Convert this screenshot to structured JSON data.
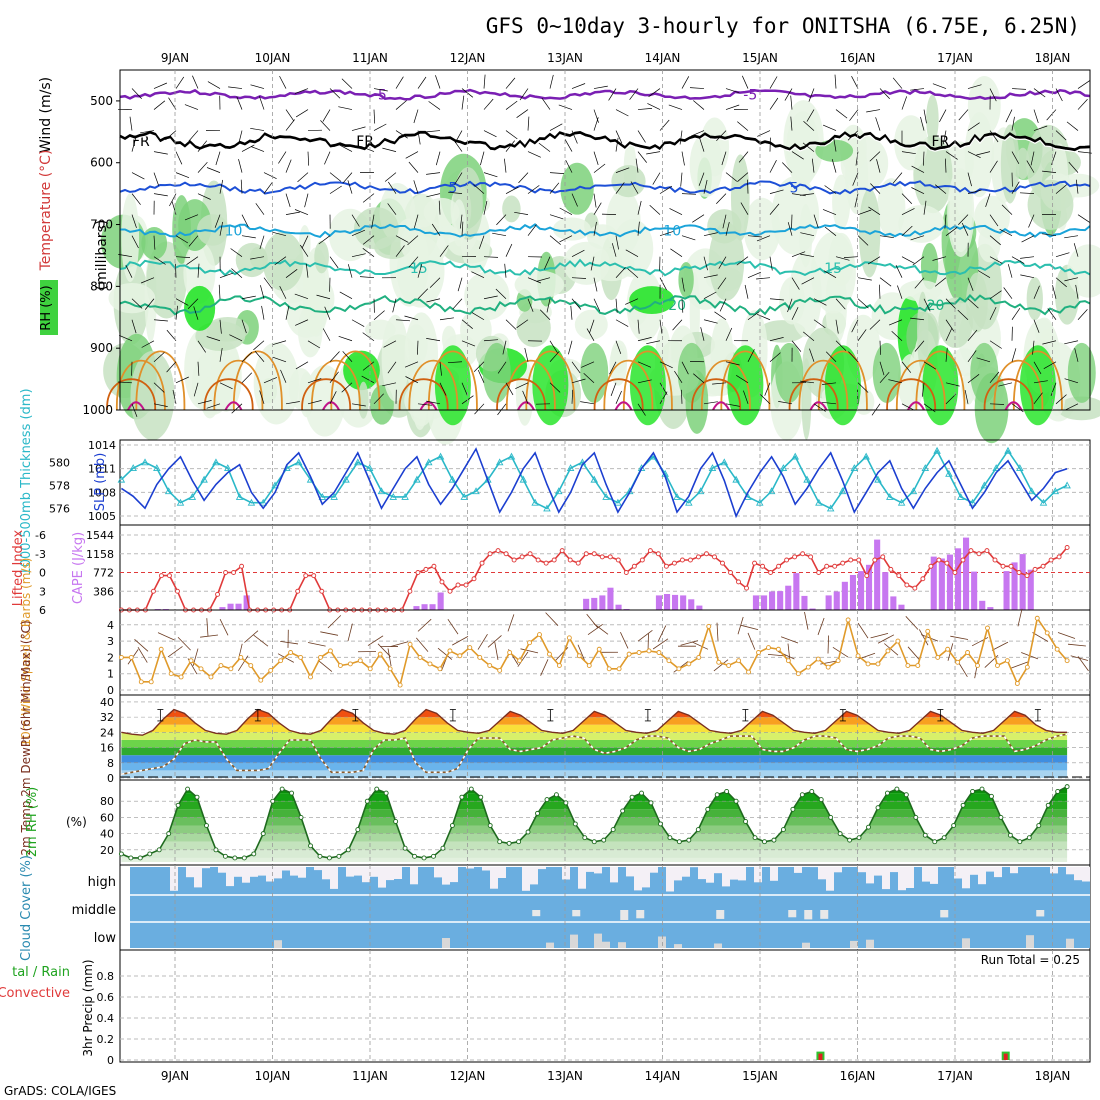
{
  "title": "GFS 0~10day 3-hourly for ONITSHA (6.75E, 6.25N)",
  "credit": "GrADS: COLA/IGES",
  "run_total_label": "Run Total = 0.25",
  "colors": {
    "rh_light": "#e6f3e3",
    "rh_mid": "#c7e2c2",
    "rh_dark": "#7dd17a",
    "rh_bright": "#1be31e",
    "purple": "#7a1fb3",
    "blue": "#1c4fd6",
    "cyan": "#1aa3d9",
    "teal": "#2bbfae",
    "green_iso": "#20b080",
    "orange": "#e0902a",
    "magenta": "#c2148a",
    "slp": "#1c3fd0",
    "thick": "#2ab8c8",
    "cape": "#c777f0",
    "li": "#e03a3a",
    "wind": "#e09a2a",
    "temp_line": "#7a3020",
    "dew_line": "#8a5a2a",
    "rh2": "#1fa31f",
    "cloud": "#6aaee0",
    "cloud_white": "#f4f0f6",
    "precip_green": "#2ec42e",
    "precip_red": "#e02020"
  },
  "chart_data": [
    {
      "type": "contour",
      "name": "upper-air",
      "xlabel_dates": [
        "9JAN",
        "10JAN",
        "11JAN",
        "12JAN",
        "13JAN",
        "14JAN",
        "15JAN",
        "16JAN",
        "17JAN",
        "18JAN"
      ],
      "ylabel": "(millibars)",
      "left_labels": [
        "Wind (m/s)",
        "Temperature (°C)",
        "RH (%)"
      ],
      "y_ticks": [
        500,
        600,
        700,
        800,
        900,
        1000
      ],
      "ylim": [
        450,
        1000
      ],
      "isotherms": [
        {
          "label": "-5",
          "p": 490
        },
        {
          "label": "FR",
          "p": 565
        },
        {
          "label": "5",
          "p": 640
        },
        {
          "label": "10",
          "p": 710
        },
        {
          "label": "15",
          "p": 770
        },
        {
          "label": "20",
          "p": 830
        }
      ]
    },
    {
      "type": "line",
      "name": "slp-thickness",
      "left_label": "1000-500mb Thickness (dm)",
      "right_label": "SLP (mb)",
      "left_ticks": [
        576,
        578,
        580
      ],
      "right_ticks": [
        1005,
        1008,
        1011,
        1014
      ],
      "series": [
        {
          "name": "SLP",
          "values": [
            1008.5,
            1007.5,
            1006,
            1009,
            1011,
            1012.5,
            1009.5,
            1007,
            1009,
            1010.5,
            1011.5,
            1008,
            1006,
            1008,
            1011.5,
            1013,
            1010,
            1006.5,
            1008,
            1010.5,
            1013,
            1009.5,
            1006,
            1008.5,
            1011,
            1012.5,
            1009,
            1006.5,
            1008.5,
            1011,
            1013.5,
            1009.5,
            1005.5,
            1008,
            1011,
            1013,
            1009,
            1005.5,
            1008,
            1011.5,
            1013,
            1009,
            1005.5,
            1008,
            1011,
            1013,
            1010,
            1005.5,
            1007.5,
            1011,
            1013,
            1009.5,
            1005,
            1008,
            1010.5,
            1012.5,
            1010,
            1006.5,
            1008.5,
            1011,
            1013,
            1009.5,
            1005.5,
            1008,
            1010.5,
            1012,
            1008.5,
            1006,
            1008.5,
            1010.5,
            1012,
            1009,
            1006,
            1008,
            1010.5,
            1012,
            1009.5,
            1007,
            1008.5,
            1010.5,
            1011
          ]
        },
        {
          "name": "Thickness",
          "values": [
            578.5,
            579.5,
            580,
            579.5,
            577.5,
            576.5,
            577,
            578.5,
            580,
            579.5,
            577,
            576.5,
            576.5,
            578,
            579.5,
            580,
            578.5,
            577,
            577,
            578.5,
            580,
            579.5,
            577.5,
            577,
            577,
            578.5,
            580,
            580.5,
            578.5,
            577,
            577.5,
            578.5,
            580,
            580.5,
            578.5,
            576.5,
            576,
            577.5,
            579.5,
            580,
            578.5,
            577,
            576.5,
            577.5,
            579.5,
            580.5,
            579,
            577,
            576.5,
            577.5,
            579.5,
            580,
            578.5,
            577,
            576.5,
            577.5,
            579.5,
            580.5,
            578.5,
            576.5,
            576,
            577.5,
            579.5,
            580.5,
            578.5,
            577,
            576.5,
            577.5,
            579.5,
            581,
            579,
            577,
            576.5,
            578,
            579.5,
            581,
            579.5,
            577.5,
            576.5,
            577.5,
            578
          ]
        }
      ]
    },
    {
      "type": "bar+line",
      "name": "cape-li",
      "left_label": "Lifted Index",
      "right_label": "CAPE (J/kg)",
      "li_ticks": [
        -6,
        -3,
        0,
        3,
        6
      ],
      "cape_ticks": [
        386,
        772,
        1158,
        1544
      ],
      "cape": [
        0,
        0,
        0,
        0,
        20,
        20,
        0,
        0,
        0,
        0,
        0,
        0,
        60,
        130,
        130,
        300,
        0,
        0,
        0,
        0,
        0,
        0,
        0,
        0,
        0,
        0,
        0,
        0,
        0,
        0,
        0,
        0,
        0,
        0,
        0,
        0,
        80,
        120,
        120,
        360,
        0,
        0,
        0,
        0,
        0,
        0,
        0,
        0,
        0,
        0,
        0,
        0,
        0,
        0,
        0,
        0,
        0,
        230,
        250,
        300,
        460,
        110,
        20,
        0,
        0,
        0,
        300,
        330,
        310,
        300,
        220,
        90,
        0,
        0,
        0,
        0,
        0,
        0,
        300,
        300,
        380,
        390,
        500,
        760,
        290,
        30,
        0,
        300,
        380,
        580,
        720,
        800,
        930,
        1450,
        780,
        280,
        110,
        0,
        0,
        0,
        1100,
        1060,
        1140,
        1270,
        1490,
        790,
        190,
        60,
        0,
        800,
        980,
        1150,
        830,
        0,
        0,
        0,
        0
      ],
      "li": [
        6,
        6,
        6,
        6,
        3,
        0.5,
        0.5,
        3,
        6,
        6,
        6,
        6,
        3.5,
        0,
        0,
        -1,
        6,
        6,
        6,
        6,
        6,
        6,
        3,
        0.5,
        0.5,
        3,
        6,
        6,
        6,
        6,
        6,
        6,
        6,
        6,
        6,
        6,
        3,
        0,
        -0.5,
        -1,
        1.5,
        3,
        2,
        2,
        1,
        -1.5,
        -3,
        -3.5,
        -3,
        -2,
        -2.5,
        -3,
        -2,
        -1.5,
        -2,
        -3.5,
        -2,
        -1.5,
        -3,
        -3,
        -2.5,
        -2.5,
        -2,
        0,
        -1,
        -2,
        -3.5,
        -3,
        -1,
        -1.5,
        -2,
        -2,
        -2.5,
        -3,
        -2.5,
        -1.5,
        0,
        1.5,
        2.5,
        -1.5,
        -1,
        0,
        -1,
        -2,
        -2.5,
        -3,
        -2.5,
        0,
        -1,
        -1,
        -1.5,
        -2,
        -2,
        0.5,
        -2,
        -2.5,
        -0.5,
        0.5,
        2,
        2.5,
        1,
        -1,
        -2,
        -1.5,
        0,
        -2,
        -3.5,
        -3,
        -3.5,
        -2,
        -1,
        -1,
        0,
        0.5,
        -0.5,
        -1,
        -2,
        -2.5,
        -4
      ]
    },
    {
      "type": "line",
      "name": "wind10m",
      "left_label": "10m Wind Speed & Barbs (m/s)",
      "y_ticks": [
        0,
        1,
        2,
        3,
        4
      ],
      "values": [
        2,
        2,
        0.5,
        0.5,
        2.5,
        1,
        0.8,
        1.8,
        1.3,
        0.8,
        1.5,
        1.3,
        2,
        1.5,
        0.6,
        1.2,
        1.8,
        2.3,
        2,
        0.8,
        2,
        2.4,
        1.5,
        1.6,
        1.8,
        1.3,
        2.2,
        1.3,
        0.3,
        2.8,
        2,
        1.6,
        1.3,
        2.4,
        2.1,
        2.6,
        2,
        1.5,
        1.2,
        2.3,
        1.8,
        2.9,
        3.4,
        2.2,
        1.5,
        3.2,
        2.1,
        1.5,
        2.5,
        1.3,
        1.3,
        2.2,
        2.3,
        2.4,
        2.3,
        1.8,
        1.3,
        1.6,
        2,
        3.9,
        1.7,
        1.5,
        1.8,
        1.1,
        2.3,
        2.6,
        2.5,
        1.8,
        1,
        1.4,
        1.9,
        1.4,
        1.8,
        4.3,
        2.1,
        1.6,
        1.6,
        2.4,
        3,
        1.5,
        1.5,
        3.6,
        2,
        2.5,
        1.7,
        2.3,
        1.5,
        3.8,
        1.5,
        1.8,
        0.4,
        1.4,
        4.4,
        3.5,
        2.5,
        1.8
      ]
    },
    {
      "type": "area",
      "name": "temp2m",
      "left_label": "2m Temp 2m DewPt (6hr Min/Max) (°C)",
      "y_ticks": [
        0,
        8,
        16,
        24,
        32,
        40
      ],
      "temp": [
        24,
        23,
        22.5,
        25,
        31,
        36,
        34,
        29,
        25,
        23.5,
        23,
        25,
        31,
        36,
        34,
        29,
        25,
        23.5,
        23,
        25,
        31,
        36,
        34,
        29,
        25,
        23.5,
        23,
        25,
        31,
        36,
        34,
        29,
        25,
        24,
        23.5,
        25,
        30,
        35,
        33,
        29,
        25,
        24,
        23.5,
        25,
        30,
        35,
        33,
        29,
        25,
        24,
        23.5,
        25,
        30,
        35,
        33,
        29,
        25,
        24,
        23.5,
        25,
        30,
        35,
        33,
        29,
        25,
        24,
        23.5,
        25,
        30,
        35,
        33,
        29,
        25,
        24,
        23.5,
        25,
        30,
        35,
        33,
        29,
        25,
        24,
        23.5,
        25,
        30,
        35,
        33,
        28,
        25,
        24,
        24
      ],
      "dew": [
        2,
        3,
        4,
        5,
        6,
        10,
        18,
        20,
        19,
        19,
        10,
        4,
        4,
        4,
        5,
        13,
        20,
        20,
        20,
        10,
        3,
        3,
        3,
        4,
        15,
        20,
        20,
        21,
        8,
        3,
        3,
        3,
        5,
        15,
        21,
        21,
        21,
        15,
        14,
        15,
        16,
        20,
        21,
        22,
        21,
        15,
        13,
        14,
        16,
        20,
        22,
        22,
        21,
        16,
        14,
        15,
        18,
        20,
        22,
        22,
        22,
        15,
        14,
        14,
        16,
        20,
        22,
        22,
        21,
        15,
        14,
        15,
        17,
        21,
        22,
        22,
        21,
        15,
        14,
        15,
        17,
        21,
        22,
        22,
        22,
        14,
        15,
        17,
        20,
        22,
        23
      ]
    },
    {
      "type": "area",
      "name": "rh2m",
      "left_label": "2m RH (%)",
      "y_ticks": [
        20,
        40,
        60,
        80
      ],
      "values": [
        15,
        10,
        10,
        15,
        20,
        40,
        75,
        95,
        85,
        50,
        20,
        12,
        10,
        10,
        15,
        40,
        80,
        95,
        90,
        60,
        25,
        12,
        10,
        12,
        20,
        45,
        80,
        95,
        90,
        55,
        22,
        12,
        10,
        12,
        22,
        50,
        85,
        95,
        85,
        50,
        30,
        28,
        30,
        42,
        65,
        82,
        88,
        78,
        52,
        35,
        30,
        32,
        45,
        68,
        85,
        90,
        78,
        52,
        35,
        30,
        32,
        45,
        70,
        88,
        92,
        80,
        55,
        35,
        30,
        32,
        45,
        70,
        88,
        92,
        82,
        60,
        40,
        32,
        35,
        48,
        72,
        90,
        95,
        88,
        60,
        38,
        30,
        35,
        50,
        75,
        92,
        95,
        86,
        60,
        38,
        30,
        35,
        50,
        75,
        92,
        98
      ]
    },
    {
      "type": "bar",
      "name": "cloud",
      "left_label": "Cloud Cover (%)",
      "levels": [
        "high",
        "middle",
        "low"
      ]
    },
    {
      "type": "bar",
      "name": "precip",
      "left_label": "3hr Precip (mm)",
      "left_label2": "tal / Rain",
      "left_label3": "Convective",
      "y_ticks": [
        0,
        0.2,
        0.4,
        0.6,
        0.8
      ],
      "ylim": [
        0,
        1
      ],
      "events": [
        {
          "day": 6.62,
          "value": 0.08
        },
        {
          "day": 8.52,
          "value": 0.08
        }
      ]
    }
  ]
}
